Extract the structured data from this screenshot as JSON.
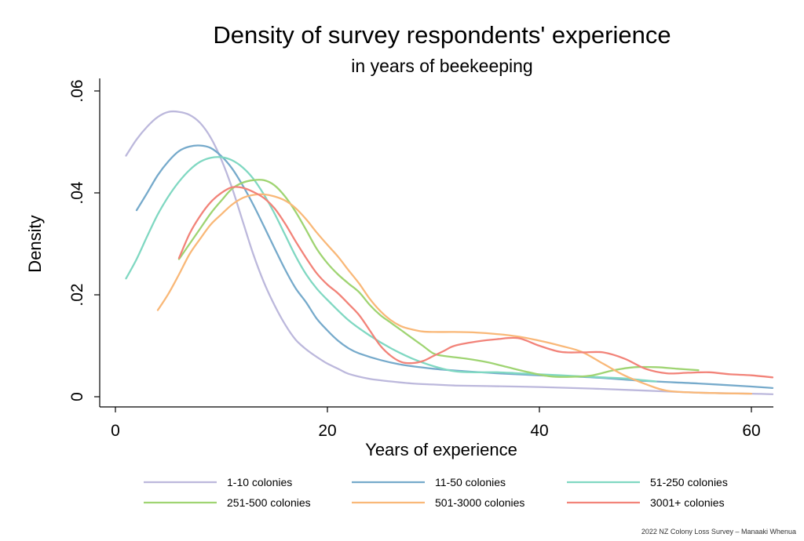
{
  "chart_data": {
    "type": "line",
    "title": "Density of survey respondents' experience",
    "subtitle": "in years of beekeeping",
    "xlabel": "Years of experience",
    "ylabel": "Density",
    "xlim": [
      0,
      62
    ],
    "ylim": [
      0,
      0.06
    ],
    "xticks": [
      0,
      20,
      40,
      60
    ],
    "xtick_labels": [
      "0",
      "20",
      "40",
      "60"
    ],
    "yticks": [
      0,
      0.02,
      0.04,
      0.06
    ],
    "ytick_labels": [
      "0",
      ".02",
      ".04",
      ".06"
    ],
    "grid": false,
    "legend_position": "bottom",
    "series": [
      {
        "name": "1-10 colonies",
        "color": "#bcb8dc",
        "x": [
          1,
          2,
          3,
          4,
          5,
          6,
          7,
          8,
          9,
          10,
          11,
          12,
          13,
          14,
          15,
          16,
          17,
          18,
          19,
          20,
          21,
          22,
          24,
          26,
          28,
          30,
          32,
          35,
          40,
          45,
          50,
          55,
          60,
          62
        ],
        "y": [
          0.0473,
          0.0505,
          0.053,
          0.0549,
          0.0559,
          0.0559,
          0.0553,
          0.0537,
          0.0508,
          0.0465,
          0.041,
          0.0345,
          0.028,
          0.0225,
          0.018,
          0.0142,
          0.0112,
          0.0093,
          0.0078,
          0.0065,
          0.0055,
          0.0045,
          0.0035,
          0.003,
          0.0026,
          0.0024,
          0.0022,
          0.0021,
          0.0019,
          0.0016,
          0.0012,
          0.0008,
          0.0006,
          0.0005
        ]
      },
      {
        "name": "11-50 colonies",
        "color": "#76aacb",
        "x": [
          2,
          3,
          4,
          5,
          6,
          7,
          8,
          9,
          10,
          11,
          12,
          13,
          14,
          15,
          16,
          17,
          18,
          19,
          20,
          21,
          22,
          23,
          25,
          27,
          30,
          33,
          36,
          40,
          45,
          50,
          55,
          60,
          62
        ],
        "y": [
          0.0366,
          0.04,
          0.0435,
          0.0462,
          0.0482,
          0.0491,
          0.0493,
          0.0488,
          0.0472,
          0.0448,
          0.0415,
          0.0377,
          0.0335,
          0.0292,
          0.025,
          0.0213,
          0.0185,
          0.0153,
          0.013,
          0.011,
          0.0095,
          0.0085,
          0.0072,
          0.0063,
          0.0055,
          0.005,
          0.0046,
          0.0042,
          0.0038,
          0.0031,
          0.0026,
          0.002,
          0.0017
        ]
      },
      {
        "name": "51-250 colonies",
        "color": "#80d8c2",
        "x": [
          1,
          2,
          3,
          4,
          5,
          6,
          7,
          8,
          9,
          10,
          11,
          12,
          13,
          14,
          15,
          16,
          17,
          18,
          19,
          20,
          22,
          24,
          26,
          28,
          30,
          32,
          34,
          36,
          38,
          40,
          42,
          44,
          46,
          48,
          50,
          51
        ],
        "y": [
          0.0232,
          0.027,
          0.0315,
          0.0358,
          0.0393,
          0.0422,
          0.0445,
          0.0461,
          0.0469,
          0.047,
          0.0464,
          0.045,
          0.0428,
          0.0397,
          0.036,
          0.0318,
          0.0276,
          0.024,
          0.0212,
          0.019,
          0.015,
          0.012,
          0.0095,
          0.0075,
          0.006,
          0.005,
          0.0048,
          0.0048,
          0.0046,
          0.0044,
          0.0042,
          0.004,
          0.0038,
          0.0036,
          0.0032,
          0.003
        ]
      },
      {
        "name": "251-500 colonies",
        "color": "#9fd472",
        "x": [
          6,
          7,
          8,
          9,
          10,
          11,
          12,
          13,
          14,
          15,
          16,
          17,
          18,
          19,
          20,
          21,
          22,
          23,
          24,
          25,
          26,
          27,
          28,
          29,
          30,
          31,
          33,
          35,
          37,
          39,
          41,
          43,
          45,
          47,
          49,
          51,
          53,
          55
        ],
        "y": [
          0.027,
          0.03,
          0.033,
          0.036,
          0.0385,
          0.0408,
          0.042,
          0.0425,
          0.0425,
          0.0415,
          0.0393,
          0.0363,
          0.0327,
          0.029,
          0.0262,
          0.024,
          0.0222,
          0.0205,
          0.018,
          0.016,
          0.0145,
          0.013,
          0.0115,
          0.01,
          0.0085,
          0.008,
          0.0075,
          0.0068,
          0.0058,
          0.0048,
          0.004,
          0.0039,
          0.0042,
          0.0052,
          0.0058,
          0.0058,
          0.0055,
          0.0052
        ]
      },
      {
        "name": "501-3000 colonies",
        "color": "#f9b878",
        "x": [
          4,
          5,
          6,
          7,
          8,
          9,
          10,
          11,
          12,
          13,
          14,
          15,
          16,
          17,
          18,
          19,
          20,
          21,
          22,
          23,
          24,
          25,
          26,
          27,
          28,
          29,
          30,
          32,
          34,
          36,
          38,
          40,
          42,
          44,
          46,
          48,
          50,
          52,
          55,
          60
        ],
        "y": [
          0.017,
          0.0202,
          0.024,
          0.028,
          0.031,
          0.0338,
          0.0358,
          0.0377,
          0.039,
          0.0396,
          0.0397,
          0.0393,
          0.0385,
          0.037,
          0.0348,
          0.0322,
          0.0298,
          0.0275,
          0.0248,
          0.0222,
          0.0192,
          0.0168,
          0.015,
          0.0138,
          0.0132,
          0.0128,
          0.0127,
          0.0127,
          0.0126,
          0.0123,
          0.0118,
          0.011,
          0.01,
          0.0088,
          0.0065,
          0.0042,
          0.0025,
          0.0012,
          0.0008,
          0.0006
        ]
      },
      {
        "name": "3001+ colonies",
        "color": "#f28379",
        "x": [
          6,
          7,
          8,
          9,
          10,
          11,
          12,
          13,
          14,
          15,
          16,
          17,
          18,
          19,
          20,
          21,
          22,
          23,
          24,
          25,
          26,
          27,
          28,
          29,
          30,
          31,
          32,
          34,
          36,
          38,
          40,
          42,
          44,
          46,
          48,
          50,
          52,
          54,
          56,
          58,
          60,
          62
        ],
        "y": [
          0.0272,
          0.032,
          0.0355,
          0.0382,
          0.04,
          0.0411,
          0.041,
          0.0402,
          0.039,
          0.037,
          0.034,
          0.0305,
          0.0272,
          0.0242,
          0.022,
          0.0203,
          0.0182,
          0.016,
          0.013,
          0.01,
          0.008,
          0.0068,
          0.0066,
          0.007,
          0.008,
          0.009,
          0.01,
          0.0108,
          0.0113,
          0.0115,
          0.01,
          0.0088,
          0.0087,
          0.0087,
          0.0075,
          0.0055,
          0.0046,
          0.0047,
          0.0048,
          0.0044,
          0.0042,
          0.0038
        ]
      }
    ],
    "credit": "2022 NZ Colony Loss Survey – Manaaki Whenua"
  }
}
